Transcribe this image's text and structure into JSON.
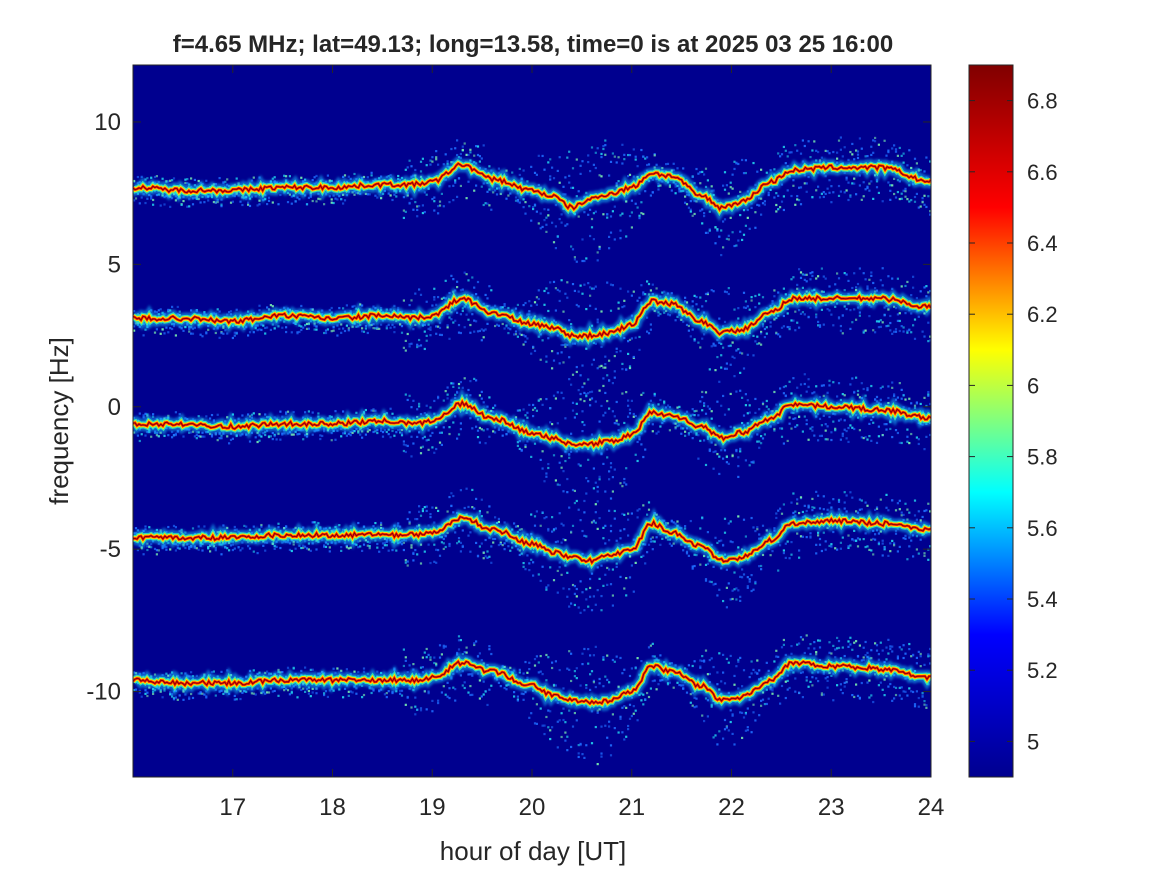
{
  "chart_data": {
    "type": "heatmap",
    "title": "f=4.65 MHz;  lat=49.13; long=13.58, time=0 is at 2025 03 25 16:00",
    "xlabel": "hour of day [UT]",
    "ylabel": "frequency [Hz]",
    "xlim": [
      16,
      24
    ],
    "ylim": [
      -13,
      12
    ],
    "x_ticks": [
      17,
      18,
      19,
      20,
      21,
      22,
      23,
      24
    ],
    "x_tick_labels": [
      "17",
      "18",
      "19",
      "20",
      "21",
      "22",
      "23",
      "24"
    ],
    "y_ticks": [
      -10,
      -5,
      0,
      5,
      10
    ],
    "y_tick_labels": [
      "-10",
      "-5",
      "0",
      "5",
      "10"
    ],
    "colorbar": {
      "range": [
        4.9,
        6.9
      ],
      "ticks": [
        5,
        5.2,
        5.4,
        5.6,
        5.8,
        6,
        6.2,
        6.4,
        6.6,
        6.8
      ],
      "tick_labels": [
        "5",
        "5.2",
        "5.4",
        "5.6",
        "5.8",
        "6",
        "6.2",
        "6.4",
        "6.6",
        "6.8"
      ],
      "colormap": "jet",
      "position": "right"
    },
    "background_color": "#00008f",
    "colormap_stops": [
      "#00008f",
      "#0000ff",
      "#00ffff",
      "#ffff00",
      "#ff0000",
      "#800000"
    ],
    "x_samples": [
      16.0,
      16.5,
      17.0,
      17.5,
      18.0,
      18.5,
      18.8,
      19.0,
      19.3,
      19.6,
      20.0,
      20.2,
      20.4,
      20.6,
      20.8,
      21.0,
      21.2,
      21.4,
      21.7,
      21.9,
      22.1,
      22.4,
      22.6,
      23.0,
      23.5,
      24.0
    ],
    "series": [
      {
        "values": [
          7.7,
          7.6,
          7.6,
          7.7,
          7.7,
          7.8,
          7.8,
          7.9,
          8.5,
          8.0,
          7.6,
          7.4,
          7.0,
          7.3,
          7.5,
          7.7,
          8.2,
          8.1,
          7.4,
          7.0,
          7.2,
          7.9,
          8.3,
          8.4,
          8.4,
          7.9
        ]
      },
      {
        "values": [
          3.1,
          3.1,
          3.0,
          3.2,
          3.1,
          3.2,
          3.1,
          3.2,
          3.8,
          3.3,
          2.9,
          2.8,
          2.5,
          2.5,
          2.6,
          2.9,
          3.7,
          3.6,
          3.0,
          2.6,
          2.7,
          3.3,
          3.8,
          3.8,
          3.8,
          3.5
        ]
      },
      {
        "values": [
          -0.6,
          -0.6,
          -0.7,
          -0.6,
          -0.6,
          -0.5,
          -0.6,
          -0.5,
          0.1,
          -0.4,
          -0.9,
          -1.1,
          -1.3,
          -1.3,
          -1.2,
          -1.0,
          -0.2,
          -0.3,
          -0.7,
          -1.1,
          -0.9,
          -0.4,
          0.1,
          0.0,
          -0.1,
          -0.4
        ]
      },
      {
        "values": [
          -4.6,
          -4.6,
          -4.6,
          -4.5,
          -4.5,
          -4.5,
          -4.5,
          -4.4,
          -3.9,
          -4.3,
          -4.8,
          -5.1,
          -5.3,
          -5.4,
          -5.2,
          -5.0,
          -4.1,
          -4.4,
          -4.9,
          -5.4,
          -5.3,
          -4.7,
          -4.1,
          -4.0,
          -4.1,
          -4.3
        ]
      },
      {
        "values": [
          -9.6,
          -9.7,
          -9.7,
          -9.6,
          -9.6,
          -9.6,
          -9.6,
          -9.5,
          -9.0,
          -9.3,
          -9.8,
          -10.1,
          -10.3,
          -10.4,
          -10.3,
          -10.0,
          -9.1,
          -9.3,
          -9.8,
          -10.3,
          -10.2,
          -9.6,
          -9.0,
          -9.1,
          -9.2,
          -9.5
        ]
      }
    ]
  }
}
